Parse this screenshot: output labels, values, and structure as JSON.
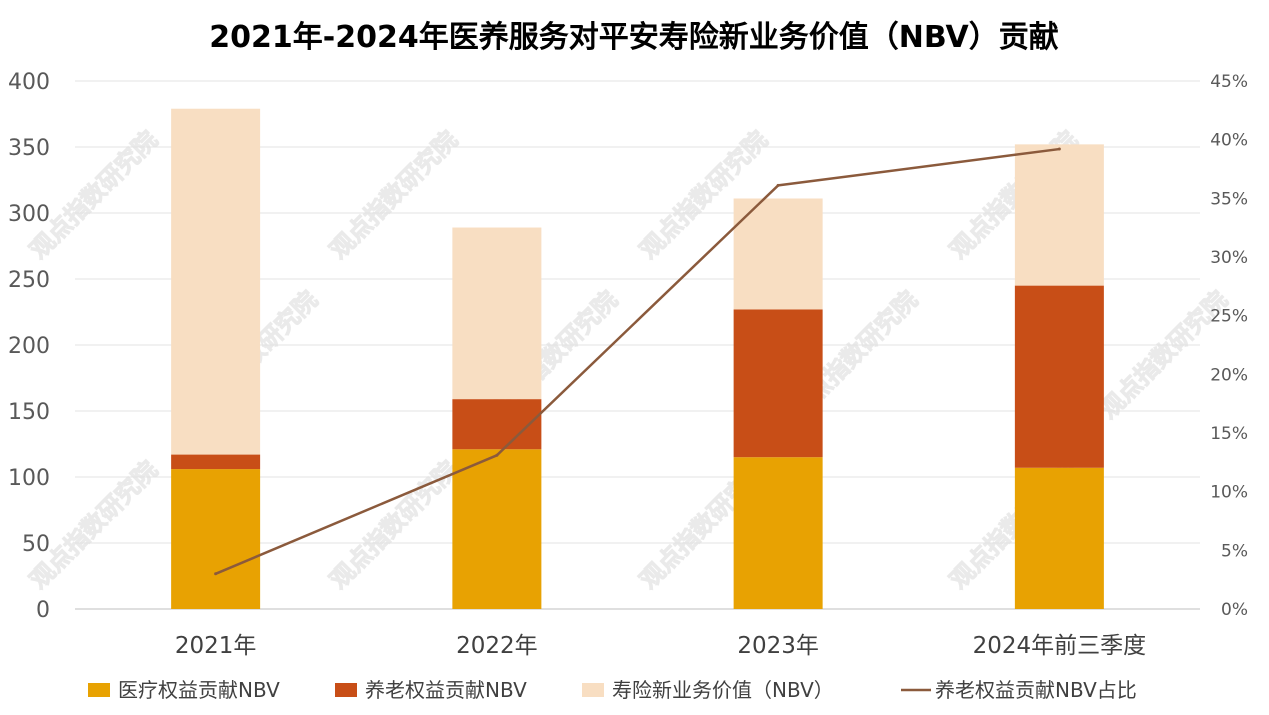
{
  "watermark": "观点指数研究院",
  "chart_data": {
    "type": "bar",
    "title": "2021年-2024年医养服务对平安寿险新业务价值（NBV）贡献",
    "categories": [
      "2021年",
      "2022年",
      "2023年",
      "2024年前三季度"
    ],
    "stacked": true,
    "series": [
      {
        "name": "医疗权益贡献NBV",
        "type": "bar",
        "axis": "left",
        "color": "#E8A202",
        "values": [
          106,
          121,
          115,
          107
        ]
      },
      {
        "name": "养老权益贡献NBV",
        "type": "bar",
        "axis": "left",
        "color": "#C84E17",
        "values": [
          11,
          38,
          112,
          138
        ]
      },
      {
        "name": "寿险新业务价值（NBV）",
        "type": "bar",
        "axis": "left",
        "color": "#F8DEC2",
        "values": [
          262,
          130,
          84,
          107
        ]
      },
      {
        "name": "养老权益贡献NBV占比",
        "type": "line",
        "axis": "right",
        "color": "#8B5A3C",
        "values": [
          3.0,
          13.1,
          36.1,
          39.2
        ]
      }
    ],
    "y_left": {
      "min": 0,
      "max": 400,
      "step": 50,
      "ticks": [
        "0",
        "50",
        "100",
        "150",
        "200",
        "250",
        "300",
        "350",
        "400"
      ]
    },
    "y_right": {
      "min": 0,
      "max": 45,
      "step": 5,
      "ticks": [
        "0%",
        "5%",
        "10%",
        "15%",
        "20%",
        "25%",
        "30%",
        "35%",
        "40%",
        "45%"
      ]
    },
    "grid": true,
    "legend_position": "bottom"
  }
}
